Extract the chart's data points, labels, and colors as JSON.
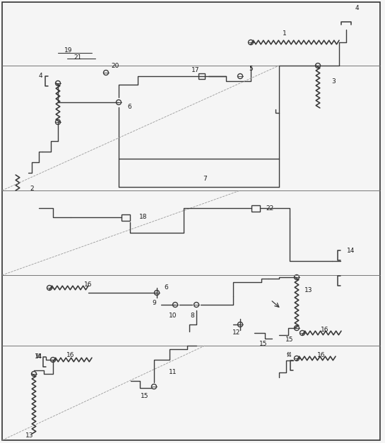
{
  "background_color": "#f5f5f5",
  "line_color": "#3a3a3a",
  "label_color": "#1a1a1a",
  "border_color": "#555555",
  "fig_width": 5.45,
  "fig_height": 6.28,
  "dpi": 100
}
